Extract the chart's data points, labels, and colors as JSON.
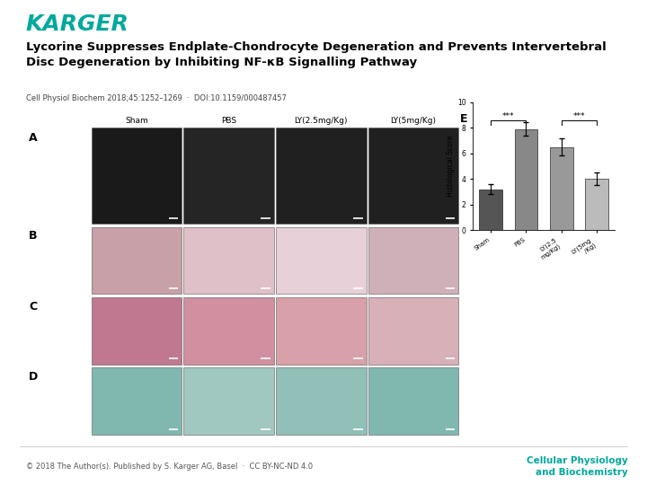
{
  "karger_color": "#00a99d",
  "title_line1": "Lycorine Suppresses Endplate-Chondrocyte Degeneration and Prevents Intervertebral",
  "title_line2": "Disc Degeneration by Inhibiting NF-κB Signalling Pathway",
  "citation": "Cell Physiol Biochem 2018;45:1252–1269  ·  DOI:10.1159/000487457",
  "footer_left": "© 2018 The Author(s). Published by S. Karger AG, Basel  ·  CC BY-NC-ND 4.0",
  "footer_right_line1": "Cellular Physiology",
  "footer_right_line2": "and Biochemistry",
  "bg_color": "#ffffff",
  "col_headers": [
    "Sham",
    "PBS",
    "LY(2.5mg/Kg)",
    "LY(5mg/Kg)"
  ],
  "panel_labels": [
    "A",
    "B",
    "C",
    "D"
  ],
  "bar_colors": [
    "#555555",
    "#888888",
    "#999999",
    "#bbbbbb"
  ],
  "bar_values": [
    3.2,
    7.9,
    6.5,
    4.0
  ],
  "bar_errors": [
    0.4,
    0.5,
    0.7,
    0.5
  ],
  "ylabel": "Histological Score",
  "ylim": [
    0,
    10
  ],
  "yticks": [
    0,
    2,
    4,
    6,
    8,
    10
  ],
  "mri_colors": [
    "#1a1a1a",
    "#252525",
    "#202020",
    "#202020"
  ],
  "he_colors_1": [
    "#c8a0a8",
    "#e0c0c8",
    "#e8d0d8",
    "#d0b0b8"
  ],
  "he_colors_2": [
    "#c07890",
    "#d090a0",
    "#d8a0a8",
    "#d8b0b8"
  ],
  "alcian_colors": [
    "#80b8b0",
    "#a0c8c0",
    "#90c0b8",
    "#80b8b0"
  ],
  "inner_bg": "#f5f5f5"
}
